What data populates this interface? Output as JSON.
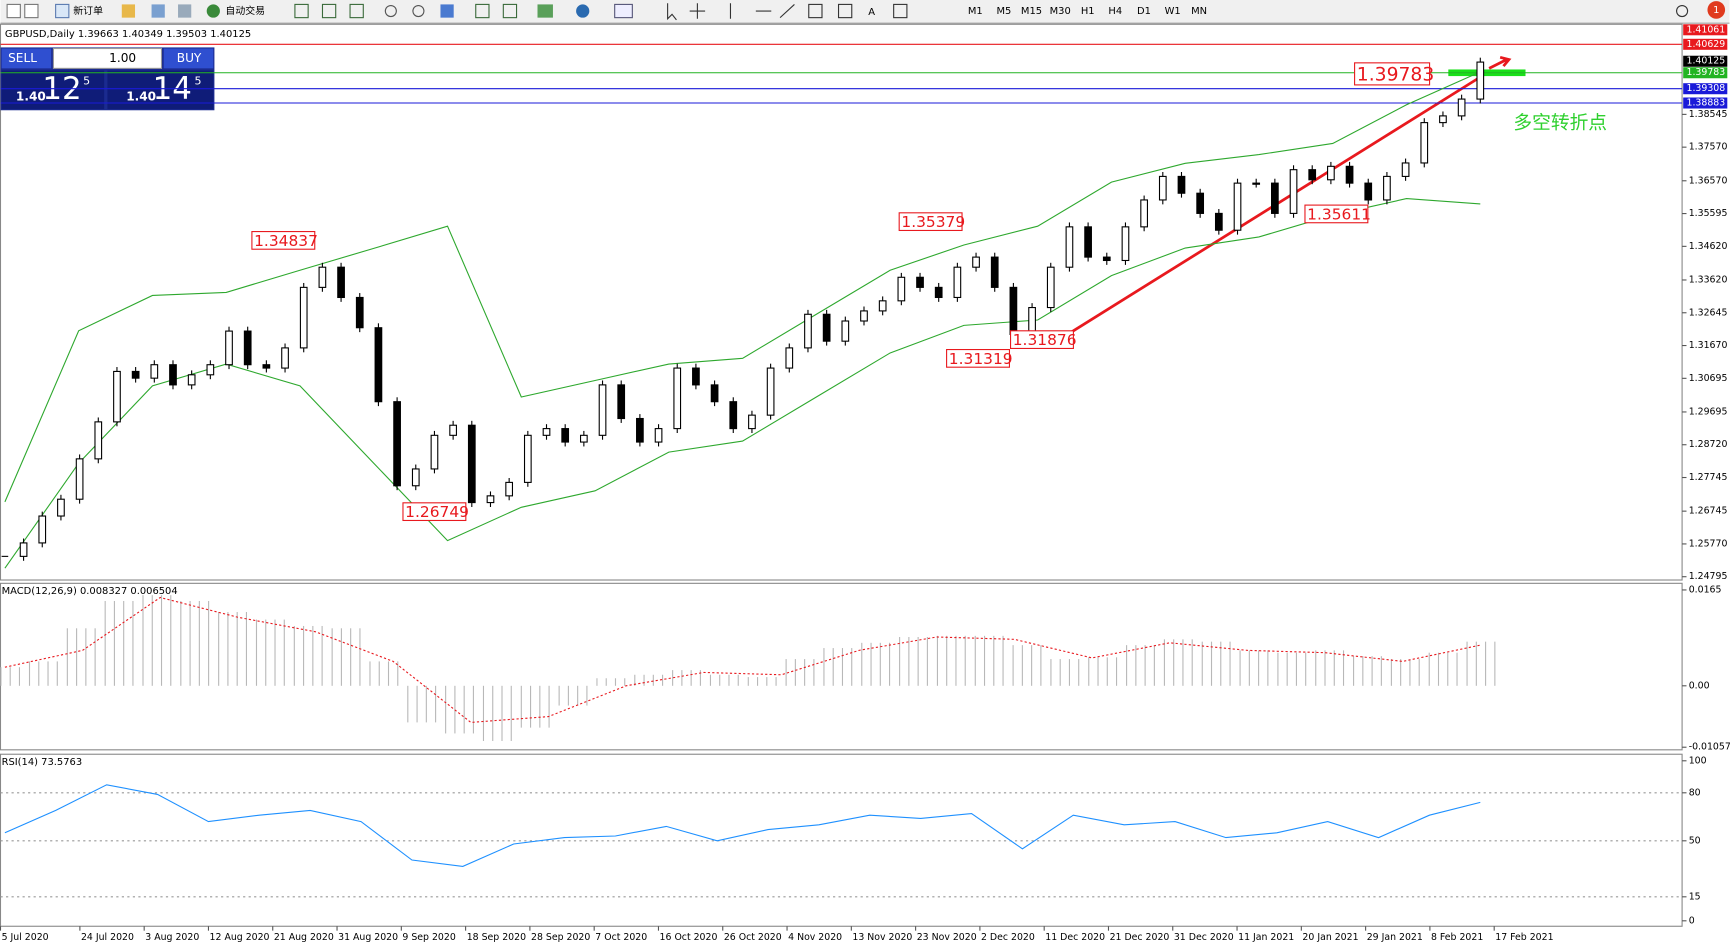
{
  "toolbar": {
    "new_order": "新订单",
    "auto_trading": "自动交易",
    "timeframes": [
      "M1",
      "M5",
      "M15",
      "M30",
      "H1",
      "H4",
      "D1",
      "W1",
      "MN"
    ]
  },
  "trade_panel": {
    "sell": "SELL",
    "buy": "BUY",
    "lots": "1.00",
    "sell_big": "1.40",
    "sell_pips": "12",
    "sell_frac": "5",
    "buy_big": "1.40",
    "buy_pips": "14",
    "buy_frac": "5"
  },
  "chart": {
    "header": "GBPUSD,Daily  1.39663 1.40349 1.39503 1.40125",
    "ylim": [
      1.24697,
      1.41225
    ],
    "yticks": [
      1.38545,
      {
        "value": 1.3757,
        "label": "1.37570"
      },
      {
        "value": 1.3657,
        "label": "1.36570"
      },
      1.35595,
      {
        "value": 1.3462,
        "label": "1.34620"
      },
      {
        "value": 1.3362,
        "label": "1.33620"
      },
      1.32645,
      {
        "value": 1.3167,
        "label": "1.31670"
      },
      1.30695,
      1.29695,
      {
        "value": 1.2872,
        "label": "1.28720"
      },
      1.27745,
      1.26745,
      {
        "value": 1.2577,
        "label": "1.25770"
      },
      1.24795
    ],
    "levels": [
      {
        "value": 1.41061,
        "label": "1.41061",
        "color": "#e8191e",
        "line": false
      },
      {
        "value": 1.40629,
        "label": "1.40629",
        "color": "#e8191e",
        "line": true
      },
      {
        "value": 1.40125,
        "label": "1.40125",
        "color": "#000000",
        "line": false
      },
      {
        "value": 1.39783,
        "label": "1.39783",
        "color": "#22b422",
        "line": true
      },
      {
        "value": 1.39308,
        "label": "1.39308",
        "color": "#1a1ad8",
        "line": true
      },
      {
        "value": 1.38883,
        "label": "1.38883",
        "color": "#1a1ad8",
        "line": true
      }
    ],
    "closes": [
      1.254,
      1.258,
      1.266,
      1.271,
      1.283,
      1.294,
      1.309,
      1.307,
      1.311,
      1.305,
      1.308,
      1.311,
      1.321,
      1.311,
      1.31,
      1.316,
      1.334,
      1.34,
      1.331,
      1.322,
      1.3,
      1.275,
      1.28,
      1.29,
      1.293,
      1.27,
      1.272,
      1.276,
      1.29,
      1.292,
      1.288,
      1.29,
      1.305,
      1.295,
      1.288,
      1.292,
      1.31,
      1.305,
      1.3,
      1.292,
      1.296,
      1.31,
      1.316,
      1.326,
      1.318,
      1.324,
      1.327,
      1.33,
      1.337,
      1.334,
      1.331,
      1.34,
      1.343,
      1.334,
      1.32,
      1.328,
      1.34,
      1.352,
      1.343,
      1.342,
      1.352,
      1.36,
      1.367,
      1.362,
      1.356,
      1.351,
      1.365,
      1.365,
      1.356,
      1.369,
      1.366,
      1.37,
      1.365,
      1.36,
      1.367,
      1.371,
      1.383,
      1.385,
      1.39,
      1.401
    ],
    "upper_band": [
      1.2702,
      1.3211,
      1.3316,
      1.3325,
      1.3391,
      1.3456,
      1.3522,
      1.3014,
      1.3063,
      1.3112,
      1.3129,
      1.326,
      1.3391,
      1.3466,
      1.3522,
      1.3653,
      1.3709,
      1.3735,
      1.3768,
      1.3883,
      1.3981
    ],
    "lower_band": [
      1.2505,
      1.2817,
      1.3047,
      1.3112,
      1.3047,
      1.2817,
      1.2587,
      1.2686,
      1.2735,
      1.285,
      1.2883,
      1.3014,
      1.3145,
      1.3227,
      1.3243,
      1.3375,
      1.3457,
      1.349,
      1.3555,
      1.3604,
      1.3588
    ],
    "annotations": [
      "1.34837",
      "1.26749",
      "1.35379",
      "1.31319",
      "1.31876",
      "1.35611",
      "1.39783"
    ],
    "note": "多空转折点"
  },
  "macd": {
    "label": "MACD(12,26,9) 0.008327 0.006504",
    "ylim": [
      -0.01102,
      0.01764
    ],
    "yticks": [
      0.0165,
      {
        "value": 0,
        "label": "0.00"
      },
      -0.010571
    ],
    "histogram": [
      0.0032,
      0.0042,
      0.0099,
      0.0146,
      0.0156,
      0.0146,
      0.0127,
      0.0114,
      0.0103,
      0.0099,
      0.0042,
      -0.0063,
      -0.0082,
      -0.0095,
      -0.0072,
      -0.0034,
      0.0013,
      0.0019,
      0.0027,
      0.0019,
      0.0015,
      0.0046,
      0.0065,
      0.0074,
      0.0084,
      0.0086,
      0.0086,
      0.007,
      0.0046,
      0.0049,
      0.007,
      0.008,
      0.0076,
      0.0061,
      0.0057,
      0.0061,
      0.0051,
      0.0046,
      0.0057,
      0.0076
    ],
    "signal": [
      0.0032,
      0.0061,
      0.0152,
      0.0118,
      0.0093,
      0.0042,
      -0.0063,
      -0.0053,
      0,
      0.0023,
      0.0019,
      0.0061,
      0.0084,
      0.008,
      0.0048,
      0.0074,
      0.0061,
      0.0057,
      0.0042,
      0.007
    ]
  },
  "rsi": {
    "label": "RSI(14) 73.5763",
    "ylim": [
      -3.4,
      104.1
    ],
    "yticks": [
      100,
      80,
      50,
      15,
      0
    ],
    "levels": [
      80,
      50,
      15
    ],
    "values": [
      55,
      69,
      85,
      79,
      62,
      66,
      69,
      62,
      38,
      34,
      48,
      52,
      53,
      59,
      50,
      57,
      60,
      66,
      64,
      67,
      45,
      66,
      60,
      62,
      52,
      55,
      62,
      52,
      66,
      74
    ]
  },
  "dates": [
    "5 Jul 2020",
    "24 Jul 2020",
    "3 Aug 2020",
    "12 Aug 2020",
    "21 Aug 2020",
    "31 Aug 2020",
    "9 Sep 2020",
    "18 Sep 2020",
    "28 Sep 2020",
    "7 Oct 2020",
    "16 Oct 2020",
    "26 Oct 2020",
    "4 Nov 2020",
    "13 Nov 2020",
    "23 Nov 2020",
    "2 Dec 2020",
    "11 Dec 2020",
    "21 Dec 2020",
    "31 Dec 2020",
    "11 Jan 2021",
    "20 Jan 2021",
    "29 Jan 2021",
    "8 Feb 2021",
    "17 Feb 2021"
  ]
}
